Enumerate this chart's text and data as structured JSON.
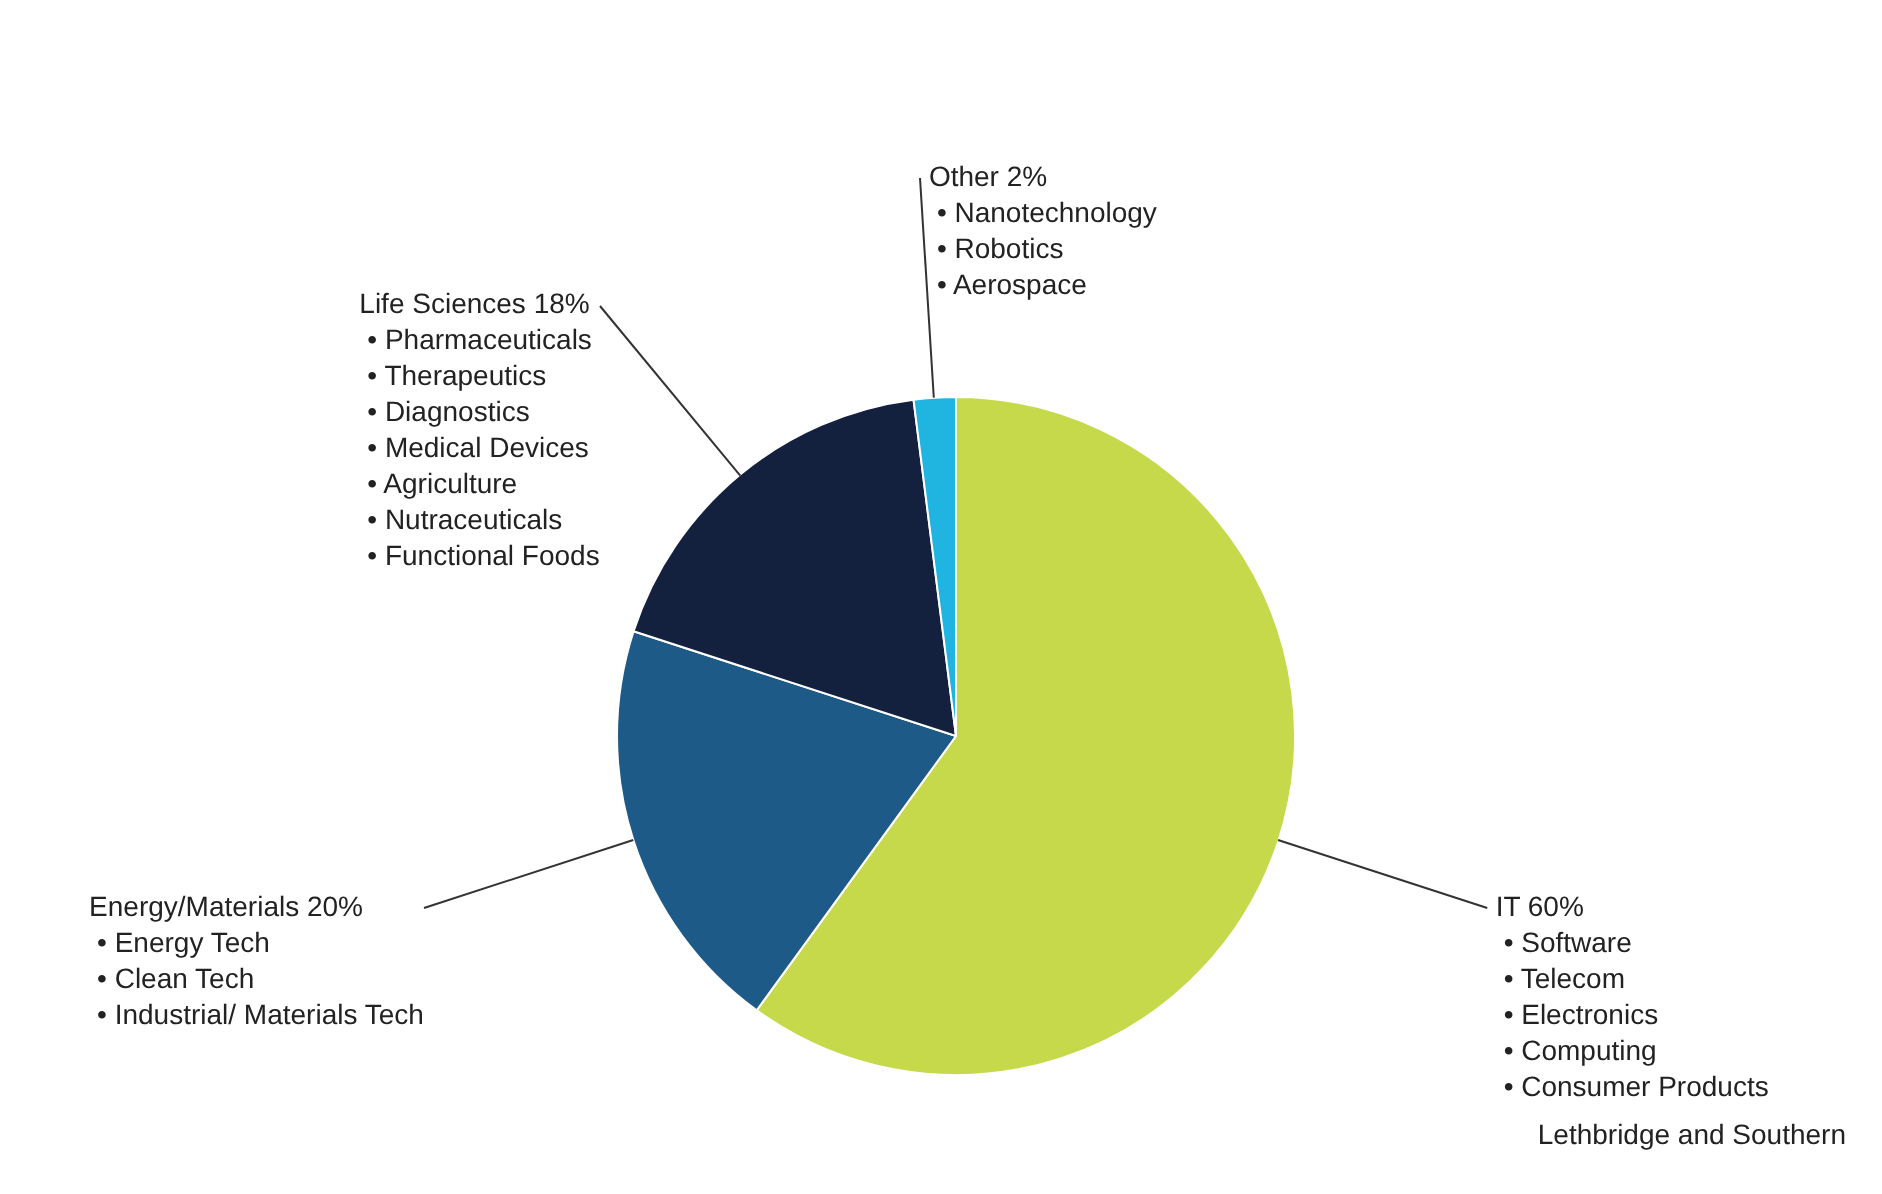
{
  "chart_data": {
    "type": "pie",
    "categories": [
      "IT",
      "Energy/Materials",
      "Life Sciences",
      "Other"
    ],
    "values": [
      60,
      20,
      18,
      2
    ],
    "value_labels": [
      "60%",
      "20%",
      "18%",
      "2%"
    ],
    "colors": [
      "#c5d94a",
      "#1d5a87",
      "#13213f",
      "#1fb5e0"
    ],
    "legend": false,
    "annotations": [
      {
        "text": "• Software",
        "x": "IT"
      },
      {
        "text": "• Telecom",
        "x": "IT"
      },
      {
        "text": "• Electronics",
        "x": "IT"
      },
      {
        "text": "• Computing",
        "x": "IT"
      },
      {
        "text": "• Consumer Products",
        "x": "IT"
      },
      {
        "text": "• Energy Tech",
        "x": "Energy/Materials"
      },
      {
        "text": "• Clean Tech",
        "x": "Energy/Materials"
      },
      {
        "text": "• Industrial/ Materials Tech",
        "x": "Energy/Materials"
      },
      {
        "text": "• Pharmaceuticals",
        "x": "Life Sciences"
      },
      {
        "text": "• Therapeutics",
        "x": "Life Sciences"
      },
      {
        "text": "• Diagnostics",
        "x": "Life Sciences"
      },
      {
        "text": "• Medical Devices",
        "x": "Life Sciences"
      },
      {
        "text": "• Agriculture",
        "x": "Life Sciences"
      },
      {
        "text": "• Nutraceuticals",
        "x": "Life Sciences"
      },
      {
        "text": "• Functional Foods",
        "x": "Life Sciences"
      },
      {
        "text": "• Nanotechnology",
        "x": "Other"
      },
      {
        "text": "• Robotics",
        "x": "Other"
      },
      {
        "text": "• Aerospace",
        "x": "Other"
      },
      "Lethbridge and Southern"
    ]
  }
}
